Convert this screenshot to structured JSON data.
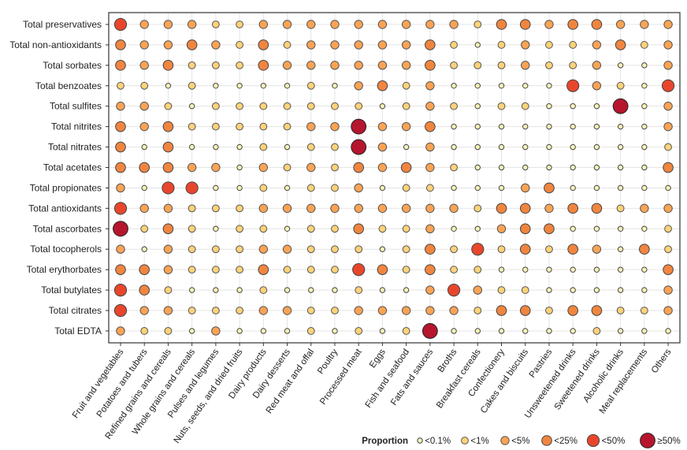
{
  "chart_data": {
    "type": "scatter",
    "title": "",
    "xlabel": "",
    "ylabel": "",
    "grid": true,
    "rows": [
      "Total preservatives",
      "Total non-antioxidants",
      "Total sorbates",
      "Total benzoates",
      "Total sulfites",
      "Total nitrites",
      "Total nitrates",
      "Total acetates",
      "Total propionates",
      "Total antioxidants",
      "Total ascorbates",
      "Total tocopherols",
      "Total erythorbates",
      "Total butylates",
      "Total citrates",
      "Total EDTA"
    ],
    "columns": [
      "Fruit and vegetables",
      "Potatoes and tubers",
      "Refined grains and cereals",
      "Whole grains and cereals",
      "Pulses and legumes",
      "Nuts, seeds, and dried fruits",
      "Dairy products",
      "Dairy desserts",
      "Red meat and offal",
      "Poultry",
      "Processed meat",
      "Eggs",
      "Fish and seafood",
      "Fats and sauces",
      "Broths",
      "Breakfast cereals",
      "Confectionery",
      "Cakes and biscuits",
      "Pastries",
      "Unsweetened drinks",
      "Sweetened drinks",
      "Alcoholic drinks",
      "Meal replacements",
      "Others"
    ],
    "levels_key": "0: <0.1%, 1: <1%, 2: <5%, 3: <25%, 4: <50%, 5: ≥50%",
    "levels": [
      [
        4,
        2,
        2,
        2,
        1,
        1,
        2,
        2,
        2,
        2,
        2,
        2,
        2,
        2,
        2,
        1,
        3,
        3,
        2,
        3,
        3,
        2,
        2,
        2
      ],
      [
        3,
        2,
        2,
        3,
        2,
        1,
        3,
        1,
        2,
        2,
        2,
        2,
        2,
        3,
        1,
        0,
        1,
        2,
        1,
        1,
        2,
        3,
        1,
        2
      ],
      [
        3,
        2,
        3,
        1,
        1,
        1,
        3,
        2,
        2,
        2,
        2,
        2,
        2,
        3,
        1,
        1,
        1,
        2,
        1,
        1,
        2,
        0,
        0,
        2
      ],
      [
        1,
        1,
        0,
        1,
        0,
        0,
        0,
        0,
        1,
        0,
        2,
        3,
        1,
        2,
        0,
        0,
        0,
        0,
        0,
        4,
        2,
        1,
        0,
        4
      ],
      [
        2,
        2,
        1,
        0,
        1,
        1,
        1,
        1,
        1,
        1,
        1,
        0,
        1,
        2,
        1,
        0,
        1,
        1,
        0,
        0,
        0,
        5,
        0,
        2
      ],
      [
        3,
        2,
        3,
        1,
        1,
        1,
        1,
        1,
        2,
        2,
        5,
        2,
        2,
        3,
        0,
        0,
        0,
        0,
        0,
        0,
        0,
        0,
        0,
        2
      ],
      [
        3,
        0,
        3,
        0,
        0,
        0,
        1,
        0,
        1,
        1,
        5,
        2,
        0,
        2,
        0,
        0,
        0,
        0,
        0,
        0,
        0,
        0,
        0,
        1
      ],
      [
        3,
        3,
        3,
        2,
        2,
        0,
        2,
        1,
        2,
        1,
        3,
        2,
        3,
        2,
        1,
        0,
        0,
        0,
        0,
        0,
        0,
        0,
        0,
        3
      ],
      [
        2,
        0,
        4,
        4,
        0,
        0,
        1,
        0,
        1,
        1,
        2,
        0,
        1,
        1,
        0,
        0,
        0,
        2,
        3,
        0,
        0,
        0,
        0,
        0
      ],
      [
        4,
        2,
        2,
        1,
        1,
        1,
        2,
        2,
        2,
        2,
        2,
        2,
        2,
        2,
        2,
        1,
        3,
        3,
        2,
        3,
        3,
        1,
        2,
        2
      ],
      [
        5,
        1,
        3,
        1,
        0,
        1,
        1,
        0,
        1,
        1,
        3,
        1,
        1,
        2,
        0,
        0,
        2,
        3,
        3,
        0,
        0,
        0,
        0,
        1
      ],
      [
        2,
        0,
        2,
        1,
        1,
        1,
        2,
        2,
        1,
        1,
        1,
        0,
        1,
        3,
        1,
        4,
        1,
        3,
        1,
        3,
        2,
        0,
        3,
        1
      ],
      [
        3,
        3,
        2,
        1,
        1,
        1,
        3,
        1,
        1,
        1,
        4,
        3,
        1,
        3,
        1,
        1,
        0,
        0,
        0,
        0,
        0,
        0,
        0,
        3
      ],
      [
        4,
        3,
        1,
        0,
        0,
        0,
        1,
        0,
        0,
        0,
        1,
        0,
        0,
        2,
        4,
        2,
        1,
        1,
        0,
        0,
        0,
        0,
        0,
        2
      ],
      [
        4,
        2,
        2,
        1,
        1,
        1,
        2,
        2,
        1,
        1,
        2,
        2,
        2,
        2,
        2,
        1,
        3,
        3,
        1,
        3,
        3,
        1,
        1,
        2
      ],
      [
        2,
        1,
        1,
        0,
        2,
        0,
        0,
        0,
        1,
        0,
        1,
        0,
        1,
        5,
        0,
        0,
        0,
        0,
        0,
        0,
        1,
        0,
        0,
        0
      ]
    ],
    "legend": {
      "title": "Proportion",
      "position": "bottom-right",
      "labels": [
        "<0.1%",
        "<1%",
        "<5%",
        "<25%",
        "<50%",
        "≥50%"
      ],
      "colors": [
        "#f7f4b6",
        "#fdd279",
        "#fba354",
        "#f0853f",
        "#e8462c",
        "#b5162e"
      ]
    }
  }
}
